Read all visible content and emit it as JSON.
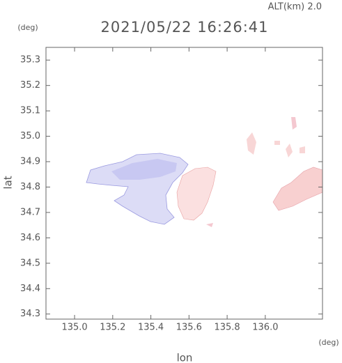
{
  "chart_data": {
    "type": "map",
    "title": "2021/05/22 16:26:41",
    "altitude_label": "ALT(km) 2.0",
    "y_unit": "(deg)",
    "x_unit": "(deg)",
    "x_label": "lon",
    "y_label": "lat",
    "xlim": [
      134.85,
      136.3
    ],
    "ylim": [
      34.28,
      35.35
    ],
    "xticks": [
      {
        "value": 135.0,
        "label": "135.0"
      },
      135.2,
      135.4,
      135.6,
      135.8,
      {
        "value": 136.0,
        "label": "136.0"
      }
    ],
    "yticks": [
      34.3,
      34.4,
      34.5,
      34.6,
      34.7,
      34.8,
      34.9,
      {
        "value": 35.0,
        "label": "35.0"
      },
      35.1,
      35.2,
      35.3
    ]
  }
}
